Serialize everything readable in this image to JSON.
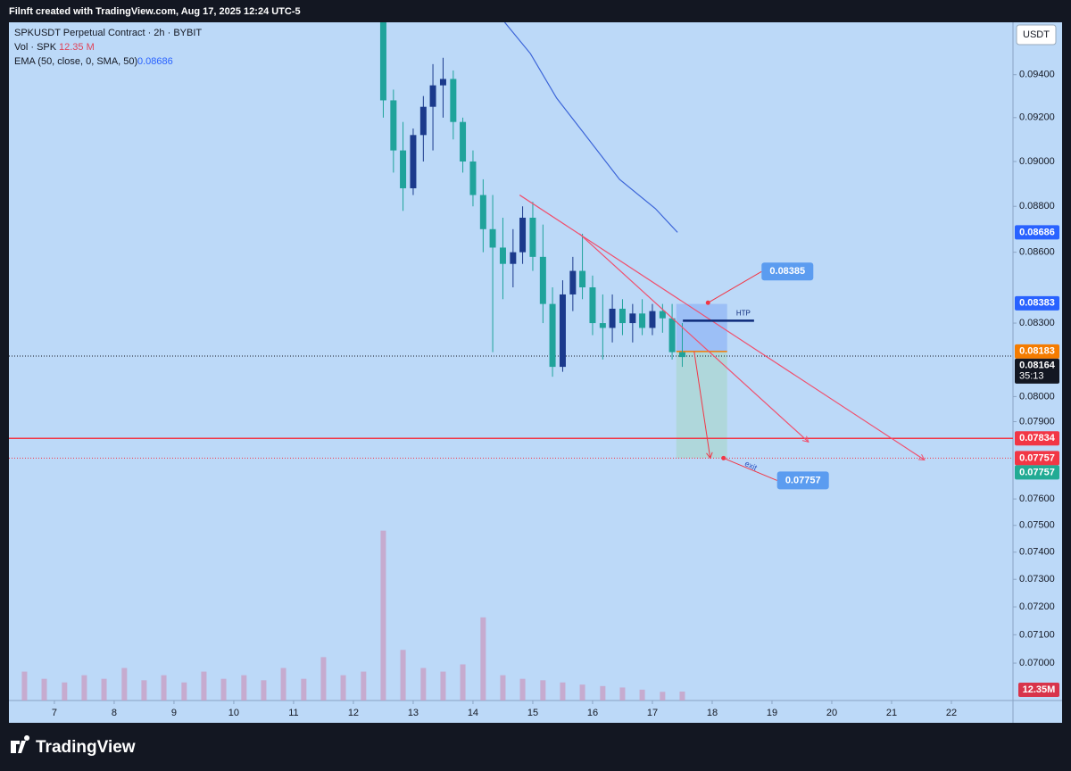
{
  "header": {
    "credit": "Filnft created with TradingView.com, Aug 17, 2025 12:24 UTC-5"
  },
  "footer": {
    "brand": "TradingView"
  },
  "chart_data": {
    "type": "candlestick",
    "title": "SPKUSDT Perpetual Contract · 2h · BYBIT",
    "legend": [
      {
        "label": "Vol · SPK",
        "value": "12.35 M"
      },
      {
        "label": "EMA (50, close, 0, SMA, 50)",
        "value": "0.08686"
      }
    ],
    "currency": "USDT",
    "x": [
      12.5,
      12.67,
      12.83,
      13.0,
      13.17,
      13.33,
      13.5,
      13.67,
      13.83,
      14.0,
      14.17,
      14.33,
      14.5,
      14.67,
      14.83,
      15.0,
      15.17,
      15.33,
      15.5,
      15.67,
      15.83,
      16.0,
      16.17,
      16.33,
      16.5,
      16.67,
      16.83,
      17.0,
      17.17,
      17.33,
      17.5
    ],
    "open": [
      0.0965,
      0.0928,
      0.0905,
      0.0888,
      0.0912,
      0.0925,
      0.0935,
      0.0938,
      0.0918,
      0.09,
      0.0885,
      0.087,
      0.0862,
      0.0855,
      0.086,
      0.0875,
      0.0858,
      0.0838,
      0.0812,
      0.0842,
      0.0852,
      0.0845,
      0.083,
      0.0828,
      0.0836,
      0.083,
      0.0834,
      0.0828,
      0.0835,
      0.0832,
      0.0818
    ],
    "high": [
      0.0965,
      0.0933,
      0.0918,
      0.0915,
      0.093,
      0.0945,
      0.0948,
      0.0942,
      0.092,
      0.0905,
      0.0892,
      0.0885,
      0.0875,
      0.087,
      0.088,
      0.0882,
      0.0872,
      0.0845,
      0.0848,
      0.0858,
      0.0868,
      0.085,
      0.0842,
      0.0842,
      0.084,
      0.0838,
      0.084,
      0.0838,
      0.0838,
      0.0838,
      0.083
    ],
    "low": [
      0.092,
      0.0895,
      0.0878,
      0.0885,
      0.09,
      0.0905,
      0.092,
      0.091,
      0.0895,
      0.088,
      0.086,
      0.0818,
      0.084,
      0.0845,
      0.0855,
      0.0852,
      0.083,
      0.0808,
      0.081,
      0.0835,
      0.084,
      0.0825,
      0.0815,
      0.0822,
      0.0825,
      0.0822,
      0.0825,
      0.0825,
      0.0826,
      0.0815,
      0.0812
    ],
    "close": [
      0.0928,
      0.0905,
      0.0888,
      0.0912,
      0.0925,
      0.0935,
      0.0938,
      0.0918,
      0.09,
      0.0885,
      0.087,
      0.0862,
      0.0855,
      0.086,
      0.0875,
      0.0858,
      0.0838,
      0.0812,
      0.0842,
      0.0852,
      0.0845,
      0.083,
      0.0828,
      0.0836,
      0.083,
      0.0834,
      0.0828,
      0.0835,
      0.0832,
      0.0818,
      0.0816
    ],
    "up_color": "#1b3a8c",
    "down_color": "#1fa39b",
    "log_scale": true,
    "xlim": [
      6.24,
      23.03
    ],
    "xticks": [
      7,
      8,
      9,
      10,
      11,
      12,
      13,
      14,
      15,
      16,
      17,
      18,
      19,
      20,
      21,
      22
    ],
    "ylim": [
      0.0687,
      0.0965
    ],
    "yticks": [
      {
        "value": 0.094,
        "label": "0.09400"
      },
      {
        "value": 0.092,
        "label": "0.09200"
      },
      {
        "value": 0.09,
        "label": "0.09000"
      },
      {
        "value": 0.088,
        "label": "0.08800"
      },
      {
        "value": 0.086,
        "label": "0.08600"
      },
      {
        "value": 0.083,
        "label": "0.08300"
      },
      {
        "value": 0.08,
        "label": "0.08000"
      },
      {
        "value": 0.079,
        "label": "0.07900"
      },
      {
        "value": 0.076,
        "label": "0.07600"
      },
      {
        "value": 0.075,
        "label": "0.07500"
      },
      {
        "value": 0.074,
        "label": "0.07400"
      },
      {
        "value": 0.073,
        "label": "0.07300"
      },
      {
        "value": 0.072,
        "label": "0.07200"
      },
      {
        "value": 0.071,
        "label": "0.07100"
      },
      {
        "value": 0.07,
        "label": "0.07000"
      }
    ],
    "volume": {
      "x": [
        6.5,
        6.83,
        7.17,
        7.5,
        7.83,
        8.17,
        8.5,
        8.83,
        9.17,
        9.5,
        9.83,
        10.17,
        10.5,
        10.83,
        11.17,
        11.5,
        11.83,
        12.17,
        12.5,
        12.83,
        13.17,
        13.5,
        13.83,
        14.17,
        14.5,
        14.83,
        15.17,
        15.5,
        15.83,
        16.17,
        16.5,
        16.83,
        17.17,
        17.5
      ],
      "values": [
        40,
        30,
        25,
        35,
        30,
        45,
        28,
        35,
        25,
        40,
        30,
        35,
        28,
        45,
        30,
        60,
        35,
        40,
        235,
        70,
        45,
        40,
        50,
        115,
        35,
        30,
        28,
        25,
        22,
        20,
        18,
        15,
        12,
        12.35
      ],
      "color": "#c8a2c8",
      "ylim": [
        0,
        300
      ],
      "label": "12.35M"
    },
    "ema": {
      "x": [
        14.53,
        14.96,
        15.4,
        15.85,
        16.45,
        17.05,
        17.42
      ],
      "values": [
        0.0965,
        0.095,
        0.0929,
        0.0913,
        0.0892,
        0.0879,
        0.08686
      ],
      "color": "#3b64d8"
    },
    "levels": [
      {
        "value": 0.07834,
        "color": "#f23645",
        "style": "solid"
      },
      {
        "value": 0.07757,
        "color": "#f23645",
        "style": "dotted"
      },
      {
        "value": 0.08164,
        "color": "#131722",
        "style": "dotted"
      }
    ],
    "trendlines": [
      {
        "x": [
          14.78,
          21.55
        ],
        "values": [
          0.0885,
          0.0775
        ],
        "color": "#f0506e"
      },
      {
        "x": [
          15.78,
          19.61
        ],
        "values": [
          0.0868,
          0.0782
        ],
        "color": "#f0506e"
      }
    ],
    "htp": {
      "label": "HTP",
      "x": [
        17.51,
        18.7
      ],
      "value": 0.0831,
      "color": "#0d2a7a"
    },
    "position": {
      "x": [
        17.4,
        18.25
      ],
      "entry": 0.08183,
      "stop": 0.0838,
      "target": 0.07757
    },
    "callouts": [
      {
        "x": 17.93,
        "value": 0.08385,
        "label": "0.08385"
      },
      {
        "x": 18.19,
        "value": 0.07757,
        "label": "0.07757"
      }
    ],
    "exit": "exit",
    "price_tags": [
      {
        "value": 0.08686,
        "label": "0.08686",
        "color": "#2962ff"
      },
      {
        "value": 0.08383,
        "label": "0.08383",
        "color": "#2962ff"
      },
      {
        "value": 0.08183,
        "label": "0.08183",
        "color": "#f57c00"
      },
      {
        "value": 0.08164,
        "label": "0.08164",
        "color": "#131722",
        "countdown": "35:13"
      },
      {
        "value": 0.07834,
        "label": "0.07834",
        "color": "#f23645"
      },
      {
        "value": 0.07757,
        "label": "0.07757",
        "color": "#f23645"
      },
      {
        "value": 0.07757,
        "label": "0.07757",
        "color": "#22ab94"
      }
    ]
  }
}
